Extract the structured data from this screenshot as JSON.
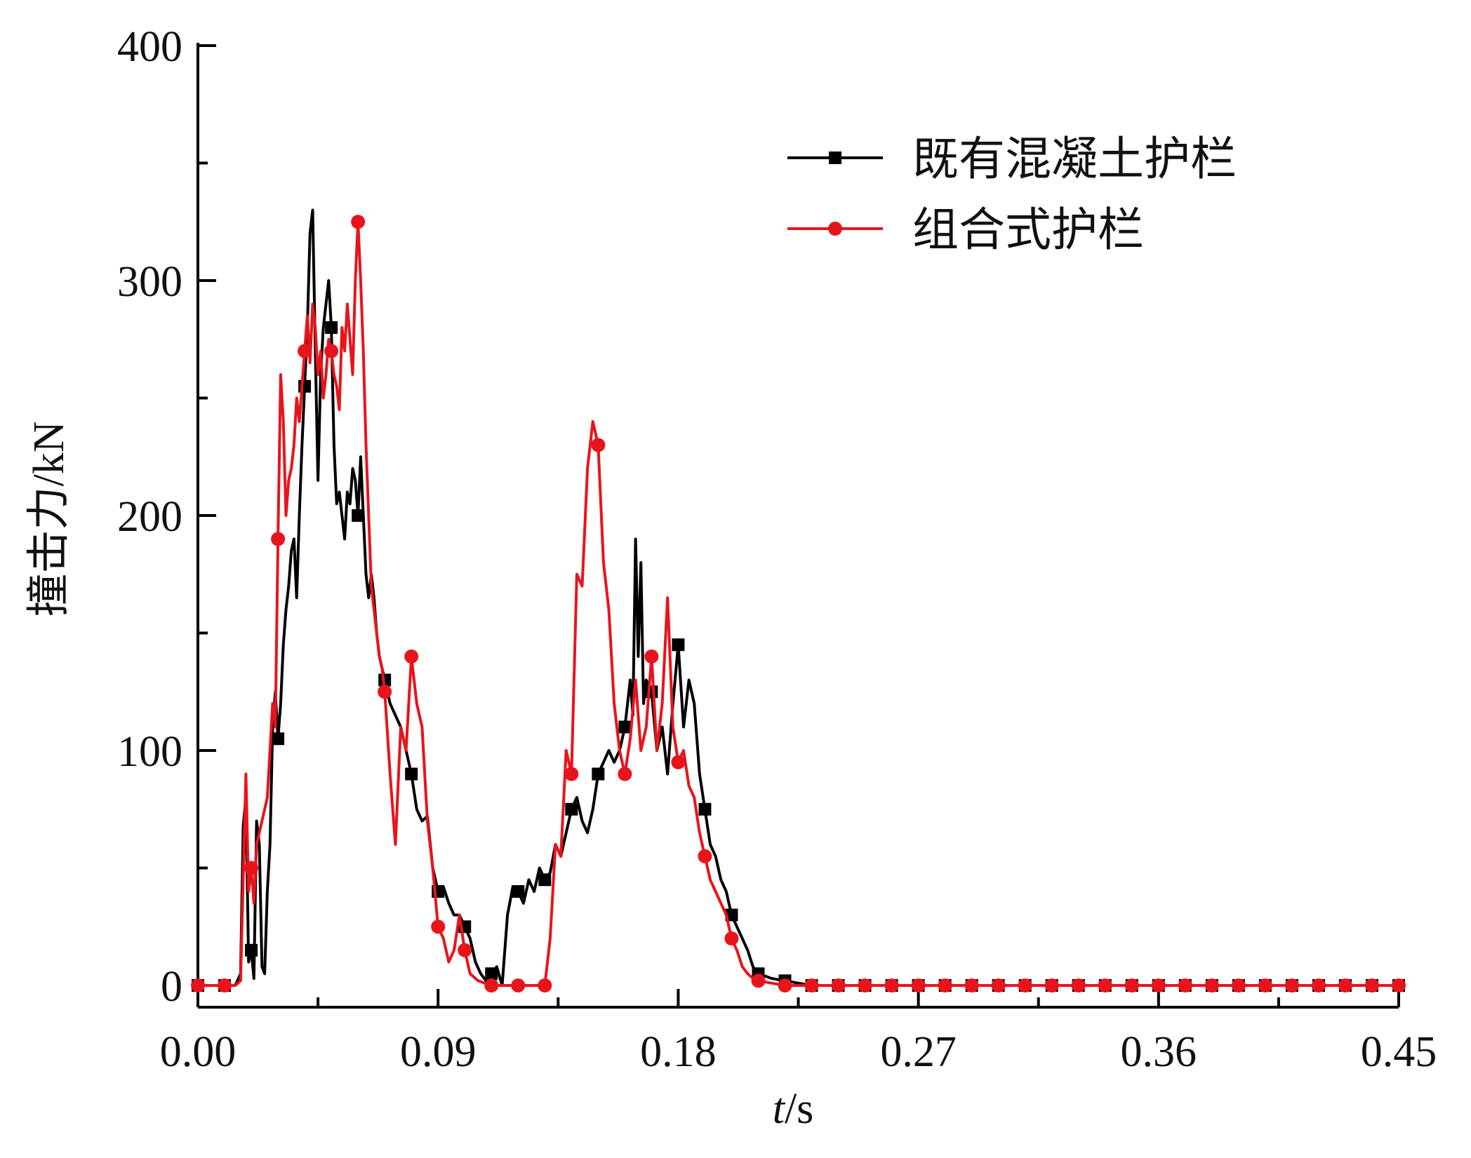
{
  "chart_data": {
    "type": "line",
    "title": "",
    "xlabel_italic": "t",
    "xlabel_unit": "/s",
    "ylabel": "撞击力/kN",
    "xlim": [
      0,
      0.45
    ],
    "ylim": [
      0,
      400
    ],
    "x_ticks": [
      "0.00",
      "0.09",
      "0.18",
      "0.27",
      "0.36",
      "0.45"
    ],
    "y_ticks": [
      "0",
      "100",
      "200",
      "300",
      "400"
    ],
    "grid": false,
    "legend_position": "top-right",
    "series": [
      {
        "name": "既有混凝土护栏",
        "color": "#000000",
        "marker": "square",
        "x": [
          0,
          0.01,
          0.012,
          0.014,
          0.016,
          0.017,
          0.018,
          0.019,
          0.02,
          0.021,
          0.022,
          0.023,
          0.024,
          0.025,
          0.026,
          0.027,
          0.028,
          0.029,
          0.03,
          0.031,
          0.032,
          0.033,
          0.034,
          0.035,
          0.036,
          0.037,
          0.038,
          0.039,
          0.04,
          0.041,
          0.042,
          0.043,
          0.044,
          0.045,
          0.046,
          0.047,
          0.048,
          0.049,
          0.05,
          0.051,
          0.052,
          0.053,
          0.054,
          0.055,
          0.056,
          0.057,
          0.058,
          0.059,
          0.06,
          0.061,
          0.062,
          0.063,
          0.064,
          0.065,
          0.066,
          0.067,
          0.068,
          0.07,
          0.072,
          0.074,
          0.076,
          0.078,
          0.08,
          0.082,
          0.084,
          0.086,
          0.088,
          0.09,
          0.092,
          0.094,
          0.096,
          0.098,
          0.1,
          0.102,
          0.104,
          0.106,
          0.108,
          0.11,
          0.112,
          0.114,
          0.116,
          0.118,
          0.12,
          0.122,
          0.124,
          0.126,
          0.128,
          0.13,
          0.132,
          0.134,
          0.136,
          0.138,
          0.14,
          0.142,
          0.144,
          0.146,
          0.148,
          0.15,
          0.152,
          0.154,
          0.156,
          0.158,
          0.16,
          0.162,
          0.163,
          0.164,
          0.165,
          0.166,
          0.167,
          0.168,
          0.17,
          0.172,
          0.174,
          0.176,
          0.178,
          0.18,
          0.182,
          0.184,
          0.186,
          0.188,
          0.19,
          0.192,
          0.194,
          0.196,
          0.198,
          0.2,
          0.202,
          0.204,
          0.206,
          0.208,
          0.21,
          0.215,
          0.22,
          0.225,
          0.23,
          0.45
        ],
        "y": [
          0,
          0,
          0,
          0,
          5,
          68,
          80,
          10,
          15,
          3,
          70,
          60,
          8,
          5,
          40,
          60,
          110,
          125,
          105,
          120,
          145,
          160,
          170,
          185,
          190,
          165,
          200,
          230,
          255,
          280,
          320,
          330,
          270,
          215,
          260,
          280,
          290,
          300,
          280,
          230,
          205,
          210,
          200,
          190,
          210,
          205,
          220,
          215,
          200,
          225,
          200,
          175,
          165,
          175,
          165,
          150,
          140,
          130,
          120,
          115,
          110,
          100,
          90,
          75,
          70,
          72,
          50,
          40,
          42,
          35,
          30,
          30,
          25,
          20,
          10,
          5,
          2,
          5,
          8,
          0,
          30,
          42,
          40,
          35,
          45,
          40,
          50,
          45,
          48,
          60,
          55,
          65,
          75,
          80,
          70,
          65,
          75,
          90,
          95,
          100,
          95,
          100,
          110,
          130,
          115,
          190,
          140,
          180,
          120,
          130,
          125,
          100,
          110,
          90,
          120,
          145,
          110,
          130,
          120,
          90,
          75,
          60,
          55,
          45,
          40,
          30,
          25,
          20,
          15,
          8,
          5,
          3,
          2,
          1,
          0,
          0
        ]
      },
      {
        "name": "组合式护栏",
        "color": "#e8141c",
        "marker": "circle",
        "x": [
          0,
          0.01,
          0.012,
          0.014,
          0.016,
          0.018,
          0.019,
          0.02,
          0.021,
          0.022,
          0.023,
          0.024,
          0.025,
          0.026,
          0.027,
          0.028,
          0.029,
          0.03,
          0.031,
          0.032,
          0.033,
          0.034,
          0.035,
          0.036,
          0.037,
          0.038,
          0.039,
          0.04,
          0.041,
          0.042,
          0.043,
          0.044,
          0.045,
          0.046,
          0.047,
          0.048,
          0.049,
          0.05,
          0.051,
          0.052,
          0.053,
          0.054,
          0.055,
          0.056,
          0.057,
          0.058,
          0.059,
          0.06,
          0.061,
          0.062,
          0.063,
          0.064,
          0.065,
          0.066,
          0.067,
          0.068,
          0.069,
          0.07,
          0.072,
          0.074,
          0.076,
          0.078,
          0.08,
          0.082,
          0.084,
          0.086,
          0.088,
          0.09,
          0.092,
          0.094,
          0.096,
          0.098,
          0.1,
          0.102,
          0.105,
          0.11,
          0.115,
          0.12,
          0.125,
          0.13,
          0.132,
          0.134,
          0.136,
          0.138,
          0.14,
          0.142,
          0.144,
          0.146,
          0.148,
          0.15,
          0.152,
          0.154,
          0.156,
          0.158,
          0.16,
          0.162,
          0.164,
          0.166,
          0.168,
          0.17,
          0.172,
          0.174,
          0.176,
          0.178,
          0.18,
          0.182,
          0.184,
          0.186,
          0.188,
          0.19,
          0.192,
          0.194,
          0.196,
          0.198,
          0.2,
          0.202,
          0.204,
          0.206,
          0.208,
          0.21,
          0.215,
          0.22,
          0.225,
          0.23,
          0.45
        ],
        "y": [
          0,
          0,
          0,
          0,
          2,
          90,
          40,
          50,
          35,
          60,
          65,
          70,
          75,
          80,
          100,
          120,
          110,
          190,
          260,
          240,
          200,
          215,
          220,
          230,
          250,
          240,
          255,
          270,
          285,
          265,
          290,
          280,
          260,
          270,
          250,
          260,
          275,
          270,
          260,
          255,
          245,
          280,
          270,
          290,
          275,
          260,
          300,
          325,
          300,
          270,
          230,
          200,
          170,
          160,
          150,
          140,
          135,
          125,
          90,
          60,
          110,
          100,
          140,
          120,
          110,
          70,
          50,
          25,
          20,
          10,
          15,
          30,
          15,
          5,
          2,
          0,
          0,
          0,
          0,
          0,
          20,
          60,
          55,
          100,
          90,
          175,
          170,
          220,
          240,
          230,
          180,
          160,
          120,
          100,
          90,
          105,
          130,
          100,
          110,
          140,
          100,
          120,
          165,
          110,
          95,
          100,
          85,
          80,
          65,
          55,
          45,
          40,
          35,
          30,
          20,
          15,
          8,
          5,
          3,
          2,
          1,
          0,
          0,
          0,
          0
        ]
      }
    ]
  }
}
